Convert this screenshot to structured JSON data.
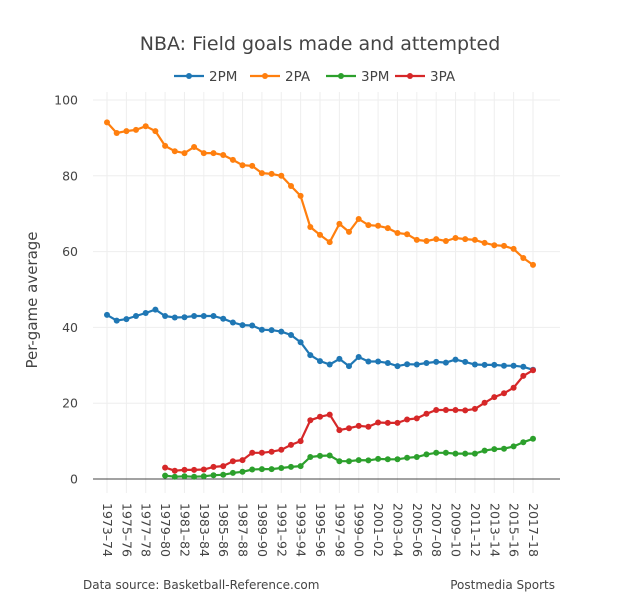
{
  "chart_data": {
    "type": "line",
    "title": "NBA: Field goals made and attempted",
    "xlabel": "",
    "ylabel": "Per-game average",
    "ylim": [
      0,
      100
    ],
    "yticks": [
      "0",
      "20",
      "40",
      "60",
      "80",
      "100"
    ],
    "grid": true,
    "legend_position": "top-center",
    "x": [
      "1973–74",
      "1974–75",
      "1975–76",
      "1976–77",
      "1977–78",
      "1978–79",
      "1979–80",
      "1980–81",
      "1981–82",
      "1982–83",
      "1983–84",
      "1984–85",
      "1985–86",
      "1986–87",
      "1987–88",
      "1988–89",
      "1989–90",
      "1990–91",
      "1991–92",
      "1992–93",
      "1993–94",
      "1994–95",
      "1995–96",
      "1996–97",
      "1997–98",
      "1998–99",
      "1999–00",
      "2000–01",
      "2001–02",
      "2002–03",
      "2003–04",
      "2004–05",
      "2005–06",
      "2006–07",
      "2007–08",
      "2008–09",
      "2009–10",
      "2010–11",
      "2011–12",
      "2012–13",
      "2013–14",
      "2014–15",
      "2015–16",
      "2016–17",
      "2017–18"
    ],
    "xticks": [
      "1973–74",
      "1975–76",
      "1977–78",
      "1979–80",
      "1981–82",
      "1983–84",
      "1985–86",
      "1987–88",
      "1989–90",
      "1991–92",
      "1993–94",
      "1995–96",
      "1997–98",
      "1999–00",
      "2001–02",
      "2003–04",
      "2005–06",
      "2007–08",
      "2009–10",
      "2011–12",
      "2013–14",
      "2015–16",
      "2017–18"
    ],
    "series": [
      {
        "name": "2PM",
        "color": "#1f77b4",
        "values": [
          43.3,
          41.8,
          42.2,
          43.0,
          43.8,
          44.7,
          43.0,
          42.6,
          42.7,
          43.0,
          43.0,
          43.0,
          42.3,
          41.3,
          40.6,
          40.5,
          39.4,
          39.3,
          38.9,
          38.0,
          36.1,
          32.7,
          31.1,
          30.2,
          31.7,
          29.8,
          32.2,
          31.0,
          31.0,
          30.6,
          29.8,
          30.3,
          30.2,
          30.6,
          30.9,
          30.7,
          31.5,
          30.9,
          30.2,
          30.1,
          30.1,
          29.9,
          29.9,
          29.6,
          28.8
        ]
      },
      {
        "name": "2PA",
        "color": "#ff7f0e",
        "values": [
          94.1,
          91.3,
          91.8,
          92.1,
          93.1,
          91.8,
          87.9,
          86.5,
          86.0,
          87.6,
          86.0,
          86.0,
          85.5,
          84.2,
          82.8,
          82.6,
          80.7,
          80.5,
          80.0,
          77.3,
          74.7,
          66.5,
          64.4,
          62.5,
          67.3,
          65.2,
          68.6,
          67.0,
          66.8,
          66.2,
          64.9,
          64.6,
          63.1,
          62.8,
          63.3,
          62.8,
          63.6,
          63.3,
          63.1,
          62.3,
          61.7,
          61.5,
          60.7,
          58.3,
          56.5
        ]
      },
      {
        "name": "3PM",
        "color": "#2ca02c",
        "values": [
          null,
          null,
          null,
          null,
          null,
          null,
          0.9,
          0.6,
          0.7,
          0.6,
          0.7,
          1.0,
          1.1,
          1.6,
          1.9,
          2.5,
          2.6,
          2.6,
          2.9,
          3.2,
          3.4,
          5.8,
          6.1,
          6.2,
          4.7,
          4.7,
          5.0,
          4.9,
          5.3,
          5.2,
          5.2,
          5.6,
          5.8,
          6.5,
          6.9,
          6.9,
          6.7,
          6.7,
          6.7,
          7.5,
          7.9,
          8.0,
          8.6,
          9.7,
          10.6
        ]
      },
      {
        "name": "3PA",
        "color": "#d62728",
        "values": [
          null,
          null,
          null,
          null,
          null,
          null,
          3.0,
          2.2,
          2.4,
          2.4,
          2.5,
          3.2,
          3.4,
          4.7,
          5.0,
          6.9,
          6.9,
          7.2,
          7.7,
          9.0,
          10.0,
          15.5,
          16.4,
          17.0,
          12.9,
          13.4,
          14.0,
          13.8,
          14.9,
          14.8,
          14.8,
          15.7,
          16.0,
          17.2,
          18.2,
          18.2,
          18.2,
          18.1,
          18.5,
          20.1,
          21.6,
          22.6,
          24.1,
          27.2,
          28.7
        ]
      }
    ]
  },
  "footer": {
    "source": "Data source: Basketball-Reference.com",
    "credit": "Postmedia Sports"
  }
}
